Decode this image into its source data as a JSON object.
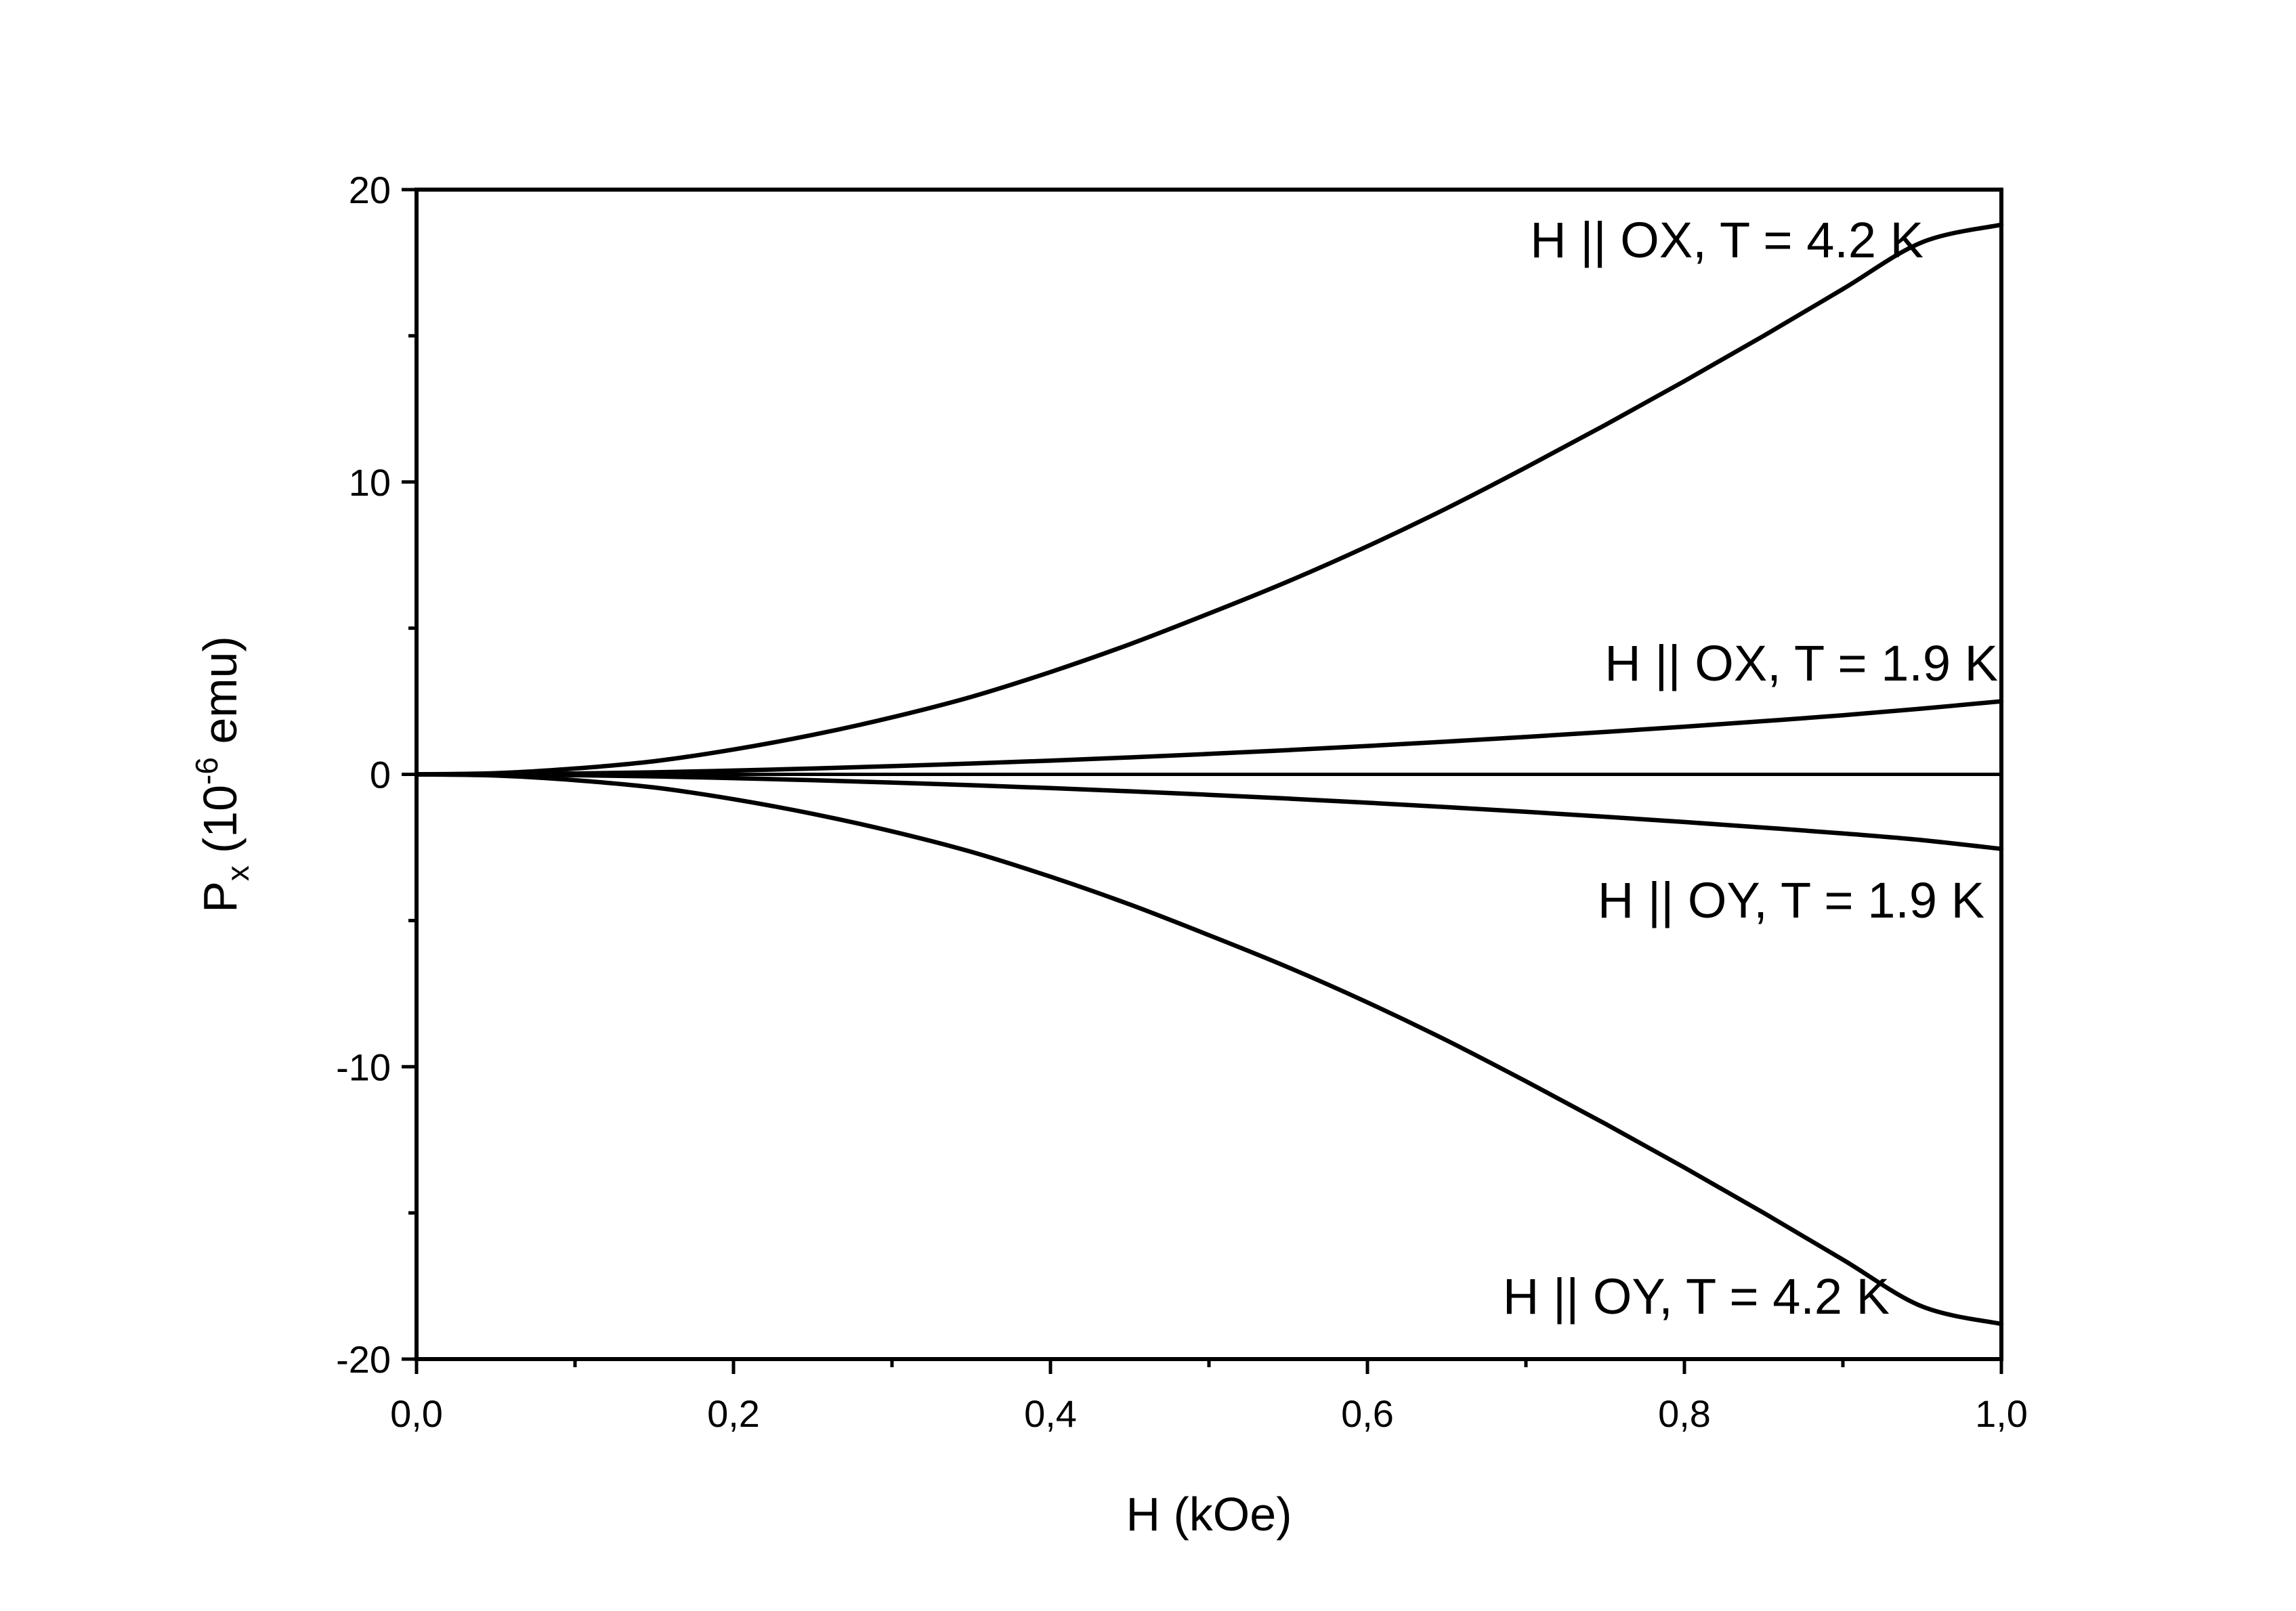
{
  "chart_data": {
    "type": "line",
    "xlabel": "H (kOe)",
    "ylabel": {
      "base": "P",
      "subscript": "x",
      "unit_prefix": "(10",
      "exponent": "-6",
      "unit_suffix": " emu)"
    },
    "xlim": [
      0,
      1.0
    ],
    "ylim": [
      -20,
      20
    ],
    "x_major_ticks": [
      0,
      0.2,
      0.4,
      0.6,
      0.8,
      1.0
    ],
    "x_tick_labels": [
      "0,0",
      "0,2",
      "0,4",
      "0,6",
      "0,8",
      "1,0"
    ],
    "x_minor_ticks": [
      0.1,
      0.3,
      0.5,
      0.7,
      0.9
    ],
    "y_major_ticks": [
      -20,
      -10,
      0,
      10,
      20
    ],
    "y_tick_labels": [
      "-20",
      "-10",
      "0",
      "10",
      "20"
    ],
    "y_minor_ticks": [
      -15,
      -5,
      5,
      15
    ],
    "grid": false,
    "legend": "none",
    "zero_line": true,
    "line_color": "#000000",
    "x": [
      0,
      0.05,
      0.1,
      0.15,
      0.2,
      0.25,
      0.3,
      0.35,
      0.4,
      0.45,
      0.5,
      0.55,
      0.6,
      0.65,
      0.7,
      0.75,
      0.8,
      0.85,
      0.9,
      0.95,
      1.0
    ],
    "series": [
      {
        "name": "H || OX, T = 4.2 K",
        "values": [
          0,
          0.04,
          0.2,
          0.45,
          0.85,
          1.35,
          1.95,
          2.65,
          3.5,
          4.45,
          5.5,
          6.6,
          7.8,
          9.1,
          10.5,
          11.95,
          13.45,
          15.0,
          16.6,
          18.2,
          18.8
        ]
      },
      {
        "name": "H || OX, T = 1.9 K",
        "values": [
          0,
          0.01,
          0.03,
          0.07,
          0.13,
          0.2,
          0.28,
          0.37,
          0.47,
          0.58,
          0.7,
          0.83,
          0.97,
          1.12,
          1.28,
          1.45,
          1.63,
          1.82,
          2.02,
          2.25,
          2.5
        ]
      },
      {
        "name": "H || OY, T = 1.9 K",
        "values": [
          0,
          -0.01,
          -0.03,
          -0.07,
          -0.13,
          -0.2,
          -0.28,
          -0.37,
          -0.47,
          -0.58,
          -0.7,
          -0.83,
          -0.97,
          -1.12,
          -1.28,
          -1.45,
          -1.63,
          -1.82,
          -2.02,
          -2.25,
          -2.55
        ]
      },
      {
        "name": "H || OY, T = 4.2 K",
        "values": [
          0,
          -0.04,
          -0.2,
          -0.45,
          -0.85,
          -1.35,
          -1.95,
          -2.65,
          -3.5,
          -4.45,
          -5.5,
          -6.6,
          -7.8,
          -9.1,
          -10.5,
          -11.95,
          -13.45,
          -15.0,
          -16.6,
          -18.2,
          -18.8
        ]
      }
    ],
    "annotations": [
      {
        "text": "H || OX, T = 4.2 K",
        "series": 0,
        "anchor": "above-end"
      },
      {
        "text": "H || OX, T = 1.9 K",
        "series": 1,
        "anchor": "above-end"
      },
      {
        "text": "H || OY, T = 1.9 K",
        "series": 2,
        "anchor": "below-end"
      },
      {
        "text": "H || OY, T = 4.2 K",
        "series": 3,
        "anchor": "above-end"
      }
    ]
  }
}
